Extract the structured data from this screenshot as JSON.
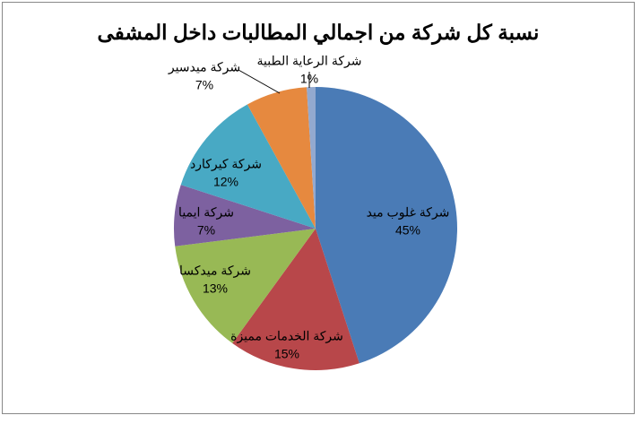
{
  "chart_data": {
    "type": "pie",
    "title": "نسبة كل شركة من اجمالي المطالبات داخل  المشفى",
    "categories": [
      "شركة غلوب ميد",
      "شركة الخدمات مميزة",
      "شركة ميدكسا",
      "شركة ايميا",
      "شركة كيركارد",
      "شركة ميدسير",
      "شركة الرعاية الطبية"
    ],
    "values": [
      45,
      15,
      13,
      7,
      12,
      7,
      1
    ],
    "value_labels": [
      "45%",
      "15%",
      "13%",
      "7%",
      "12%",
      "7%",
      "1%"
    ],
    "colors": [
      "#4a7bb6",
      "#b8474a",
      "#98b955",
      "#7d61a0",
      "#48a9c4",
      "#e6893f",
      "#93a9cf"
    ]
  }
}
